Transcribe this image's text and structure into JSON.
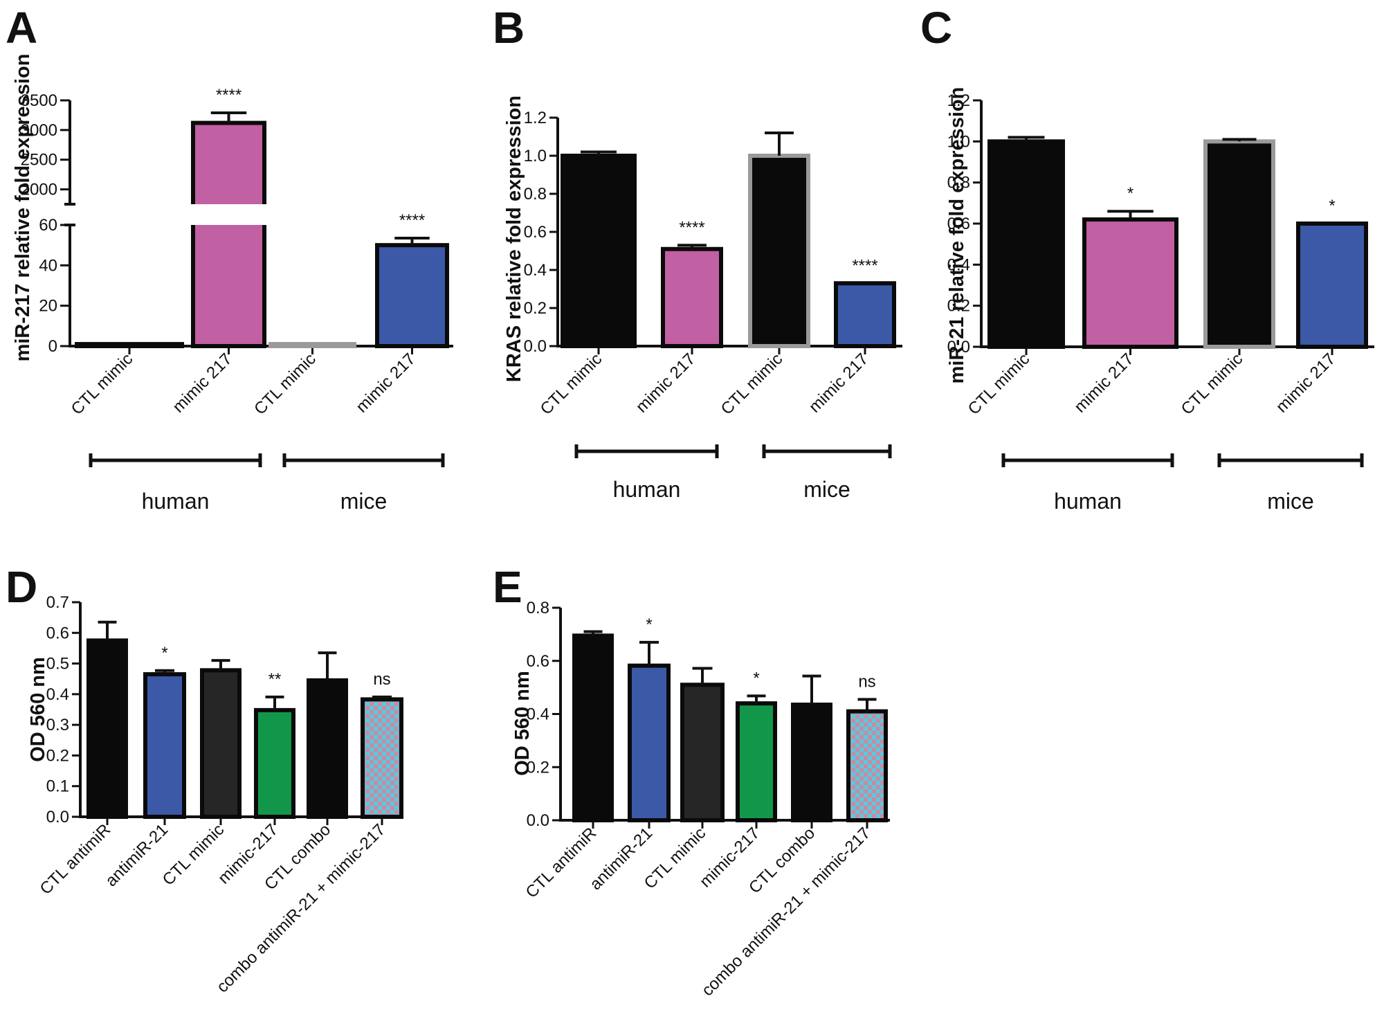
{
  "chart_data": [
    {
      "panel": "A",
      "type": "bar",
      "ylabel": "miR-217 relative fold expression",
      "categories": [
        "CTL mimic",
        "mimic 217",
        "CTL mimic",
        "mimic 217"
      ],
      "values": [
        1,
        3120,
        1,
        50
      ],
      "errors": [
        0,
        170,
        0,
        3.5
      ],
      "significance": [
        "",
        "****",
        "",
        "****"
      ],
      "colors": [
        "#0a0a0a",
        "#c160a2",
        "#0a0a0a",
        "#3c59a8"
      ],
      "outline": [
        "#0a0a0a",
        "#0a0a0a",
        "#9a9a9a",
        "#0a0a0a"
      ],
      "pattern": [
        false,
        false,
        false,
        false
      ],
      "axis_break": {
        "lower_range": [
          0,
          60
        ],
        "upper_range": [
          1750,
          3500
        ]
      },
      "lower_ticks": [
        "0",
        "20",
        "40",
        "60"
      ],
      "upper_ticks": [
        "2000",
        "2500",
        "3000",
        "3500"
      ],
      "groups": [
        {
          "label": "human",
          "from": 0,
          "to": 1
        },
        {
          "label": "mice",
          "from": 2,
          "to": 3
        }
      ]
    },
    {
      "panel": "B",
      "type": "bar",
      "ylabel": "KRAS relative fold expression",
      "categories": [
        "CTL mimic",
        "mimic 217",
        "CTL mimic",
        "mimic 217"
      ],
      "values": [
        1.0,
        0.51,
        1.0,
        0.33
      ],
      "errors": [
        0.02,
        0.02,
        0.12,
        0.0
      ],
      "significance": [
        "",
        "****",
        "",
        "****"
      ],
      "colors": [
        "#0a0a0a",
        "#c160a2",
        "#0a0a0a",
        "#3c59a8"
      ],
      "outline": [
        "#0a0a0a",
        "#0a0a0a",
        "#9a9a9a",
        "#0a0a0a"
      ],
      "pattern": [
        false,
        false,
        false,
        false
      ],
      "ylim": [
        0,
        1.2
      ],
      "ticks": [
        "0.0",
        "0.2",
        "0.4",
        "0.6",
        "0.8",
        "1.0",
        "1.2"
      ],
      "groups": [
        {
          "label": "human",
          "from": 0,
          "to": 1
        },
        {
          "label": "mice",
          "from": 2,
          "to": 3
        }
      ]
    },
    {
      "panel": "C",
      "type": "bar",
      "ylabel": "miR-21 relative fold expression",
      "categories": [
        "CTL mimic",
        "mimic 217",
        "CTL mimic",
        "mimic 217"
      ],
      "values": [
        1.0,
        0.62,
        1.0,
        0.6
      ],
      "errors": [
        0.02,
        0.04,
        0.01,
        0.0
      ],
      "significance": [
        "",
        "*",
        "",
        "*"
      ],
      "colors": [
        "#0a0a0a",
        "#c160a2",
        "#0a0a0a",
        "#3c59a8"
      ],
      "outline": [
        "#0a0a0a",
        "#0a0a0a",
        "#9a9a9a",
        "#0a0a0a"
      ],
      "pattern": [
        false,
        false,
        false,
        false
      ],
      "ylim": [
        0,
        1.2
      ],
      "ticks": [
        "0.0",
        "0.2",
        "0.4",
        "0.6",
        "0.8",
        "1.0",
        "1.2"
      ],
      "groups": [
        {
          "label": "human",
          "from": 0,
          "to": 1
        },
        {
          "label": "mice",
          "from": 2,
          "to": 3
        }
      ]
    },
    {
      "panel": "D",
      "type": "bar",
      "ylabel": "OD 560 nm",
      "categories": [
        "CTL antimiR",
        "antimiR-21",
        "CTL mimic",
        "mimic-217",
        "CTL combo",
        "combo antimiR-21 + mimic-217"
      ],
      "values": [
        0.575,
        0.465,
        0.478,
        0.348,
        0.445,
        0.383
      ],
      "errors": [
        0.06,
        0.012,
        0.032,
        0.043,
        0.09,
        0.008
      ],
      "significance": [
        "",
        "*",
        "",
        "**",
        "",
        "ns"
      ],
      "colors": [
        "#0a0a0a",
        "#3c59a8",
        "#262626",
        "#12964a",
        "#0a0a0a",
        "#6ec9d8"
      ],
      "outline": [
        "#0a0a0a",
        "#0a0a0a",
        "#0a0a0a",
        "#0a0a0a",
        "#0a0a0a",
        "#0a0a0a"
      ],
      "pattern": [
        false,
        false,
        false,
        false,
        false,
        true
      ],
      "ylim": [
        0,
        0.7
      ],
      "ticks": [
        "0.0",
        "0.1",
        "0.2",
        "0.3",
        "0.4",
        "0.5",
        "0.6",
        "0.7"
      ]
    },
    {
      "panel": "E",
      "type": "bar",
      "ylabel": "OD 560 nm",
      "categories": [
        "CTL antimiR",
        "antimiR-21",
        "CTL mimic",
        "mimic-217",
        "CTL combo",
        "combo antimiR-21 + mimic-217"
      ],
      "values": [
        0.695,
        0.582,
        0.51,
        0.44,
        0.435,
        0.41
      ],
      "errors": [
        0.015,
        0.088,
        0.062,
        0.028,
        0.108,
        0.045
      ],
      "significance": [
        "",
        "*",
        "",
        "*",
        "",
        "ns"
      ],
      "colors": [
        "#0a0a0a",
        "#3c59a8",
        "#262626",
        "#12964a",
        "#0a0a0a",
        "#6ec9d8"
      ],
      "outline": [
        "#0a0a0a",
        "#0a0a0a",
        "#0a0a0a",
        "#0a0a0a",
        "#0a0a0a",
        "#0a0a0a"
      ],
      "pattern": [
        false,
        false,
        false,
        false,
        false,
        true
      ],
      "ylim": [
        0,
        0.8
      ],
      "ticks": [
        "0.0",
        "0.2",
        "0.4",
        "0.6",
        "0.8"
      ]
    }
  ]
}
